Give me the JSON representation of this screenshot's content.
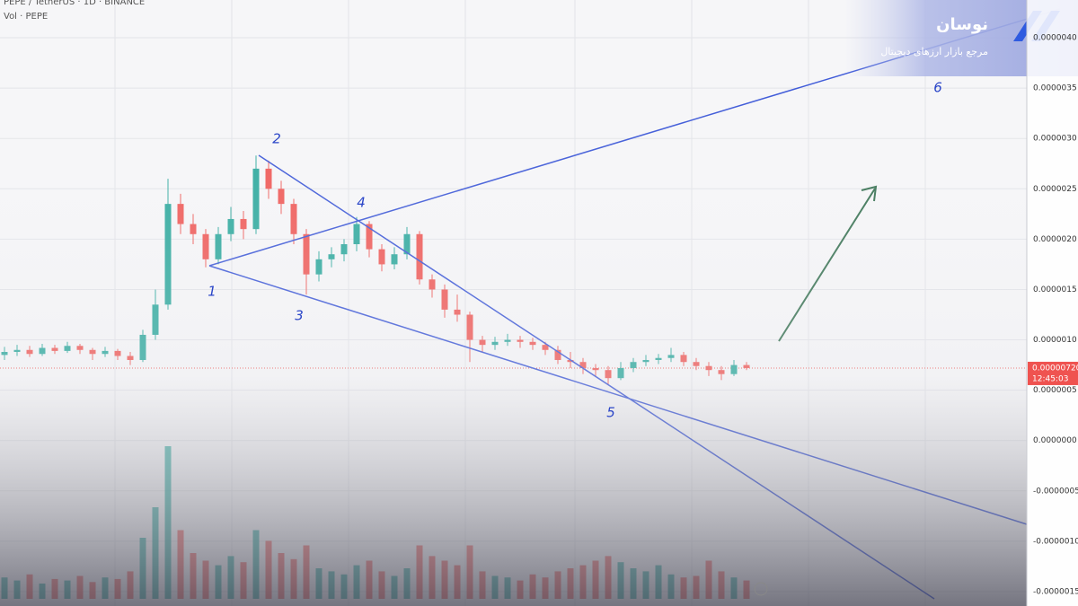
{
  "chart_data": {
    "type": "candlestick",
    "header": "PEPE / TetherUS · 1D · BINANCE",
    "volume_label": "Vol · PEPE",
    "open": [
      8.5e-07,
      8.8e-07,
      9e-07,
      8.6e-07,
      9.2e-07,
      8.9e-07,
      9.4e-07,
      9e-07,
      8.6e-07,
      8.9e-07,
      8.4e-07,
      8e-07,
      1.05e-06,
      1.35e-06,
      2.35e-06,
      2.15e-06,
      2.05e-06,
      1.8e-06,
      2.05e-06,
      2.2e-06,
      2.1e-06,
      2.7e-06,
      2.5e-06,
      2.35e-06,
      2.05e-06,
      1.65e-06,
      1.8e-06,
      1.85e-06,
      1.95e-06,
      2.15e-06,
      1.9e-06,
      1.75e-06,
      1.85e-06,
      2.05e-06,
      1.6e-06,
      1.5e-06,
      1.3e-06,
      1.25e-06,
      1e-06,
      9.5e-07,
      9.8e-07,
      1e-06,
      9.8e-07,
      9.5e-07,
      9e-07,
      8e-07,
      7.8e-07,
      7.2e-07,
      7e-07,
      6.2e-07,
      7.2e-07,
      7.8e-07,
      8e-07,
      8.2e-07,
      8.5e-07,
      7.8e-07,
      7.4e-07,
      7e-07,
      6.6e-07,
      7.5e-07
    ],
    "high": [
      9.3e-07,
      9.5e-07,
      9.4e-07,
      9.6e-07,
      9.5e-07,
      9.8e-07,
      9.6e-07,
      9.2e-07,
      9.3e-07,
      9.1e-07,
      8.8e-07,
      1.1e-06,
      1.5e-06,
      2.6e-06,
      2.45e-06,
      2.25e-06,
      2.1e-06,
      2.12e-06,
      2.32e-06,
      2.28e-06,
      2.83e-06,
      2.78e-06,
      2.58e-06,
      2.4e-06,
      2.1e-06,
      1.88e-06,
      1.92e-06,
      2e-06,
      2.22e-06,
      2.18e-06,
      1.95e-06,
      1.92e-06,
      2.12e-06,
      2.08e-06,
      1.65e-06,
      1.55e-06,
      1.45e-06,
      1.28e-06,
      1.04e-06,
      1.03e-06,
      1.06e-06,
      1.04e-06,
      1.02e-06,
      9.8e-07,
      9.4e-07,
      8.8e-07,
      8.2e-07,
      7.6e-07,
      7.4e-07,
      7.8e-07,
      8.2e-07,
      8.5e-07,
      8.6e-07,
      9.2e-07,
      8.8e-07,
      8.2e-07,
      7.8e-07,
      7.4e-07,
      8e-07,
      7.8e-07
    ],
    "low": [
      8e-07,
      8.4e-07,
      8.3e-07,
      8.4e-07,
      8.6e-07,
      8.7e-07,
      8.6e-07,
      8e-07,
      8.3e-07,
      8e-07,
      7.5e-07,
      7.8e-07,
      1e-06,
      1.3e-06,
      2.05e-06,
      1.95e-06,
      1.72e-06,
      1.75e-06,
      1.98e-06,
      2e-06,
      2.05e-06,
      2.4e-06,
      2.25e-06,
      1.95e-06,
      1.45e-06,
      1.58e-06,
      1.72e-06,
      1.78e-06,
      1.88e-06,
      1.82e-06,
      1.68e-06,
      1.7e-06,
      1.8e-06,
      1.55e-06,
      1.42e-06,
      1.22e-06,
      1.18e-06,
      7.8e-07,
      8.8e-07,
      9e-07,
      9.4e-07,
      9.2e-07,
      9e-07,
      8.5e-07,
      7.6e-07,
      7.2e-07,
      6.6e-07,
      6.4e-07,
      5.5e-07,
      6e-07,
      6.8e-07,
      7.4e-07,
      7.6e-07,
      7.8e-07,
      7.4e-07,
      7e-07,
      6.4e-07,
      6e-07,
      6.4e-07,
      7e-07
    ],
    "close": [
      8.8e-07,
      9e-07,
      8.6e-07,
      9.2e-07,
      8.9e-07,
      9.4e-07,
      9e-07,
      8.6e-07,
      8.9e-07,
      8.4e-07,
      8e-07,
      1.05e-06,
      1.35e-06,
      2.35e-06,
      2.15e-06,
      2.05e-06,
      1.8e-06,
      2.05e-06,
      2.2e-06,
      2.1e-06,
      2.7e-06,
      2.5e-06,
      2.35e-06,
      2.05e-06,
      1.65e-06,
      1.8e-06,
      1.85e-06,
      1.95e-06,
      2.15e-06,
      1.9e-06,
      1.75e-06,
      1.85e-06,
      2.05e-06,
      1.6e-06,
      1.5e-06,
      1.3e-06,
      1.25e-06,
      1e-06,
      9.5e-07,
      9.8e-07,
      1e-06,
      9.8e-07,
      9.5e-07,
      9e-07,
      8e-07,
      7.8e-07,
      7.2e-07,
      7e-07,
      6.2e-07,
      7.2e-07,
      7.8e-07,
      8e-07,
      8.2e-07,
      8.5e-07,
      7.8e-07,
      7.4e-07,
      7e-07,
      6.6e-07,
      7.5e-07,
      7.2e-07
    ],
    "volume": [
      14,
      12,
      16,
      10,
      13,
      12,
      15,
      11,
      14,
      13,
      18,
      40,
      60,
      100,
      45,
      30,
      25,
      22,
      28,
      24,
      45,
      38,
      30,
      26,
      35,
      20,
      18,
      16,
      22,
      25,
      18,
      15,
      20,
      35,
      28,
      25,
      22,
      35,
      18,
      15,
      14,
      12,
      16,
      14,
      18,
      20,
      22,
      25,
      28,
      24,
      20,
      18,
      22,
      16,
      14,
      15,
      25,
      18,
      14,
      12
    ],
    "up_color": "#26a69a",
    "down_color": "#ef5350",
    "ylim": [
      -1.643e-06,
      4.375e-06
    ],
    "yticks": [
      {
        "value": 4e-06,
        "label": "0.0000040"
      },
      {
        "value": 3.5e-06,
        "label": "0.0000035"
      },
      {
        "value": 3e-06,
        "label": "0.0000030"
      },
      {
        "value": 2.5e-06,
        "label": "0.0000025"
      },
      {
        "value": 2e-06,
        "label": "0.0000020"
      },
      {
        "value": 1.5e-06,
        "label": "0.0000015"
      },
      {
        "value": 1e-06,
        "label": "0.0000010"
      },
      {
        "value": 5e-07,
        "label": "0.0000005"
      },
      {
        "value": 0,
        "label": "0.0000000"
      },
      {
        "value": -5e-07,
        "label": "-0.0000005"
      },
      {
        "value": -1e-06,
        "label": "-0.0000010"
      },
      {
        "value": -1.5e-06,
        "label": "-0.0000015"
      }
    ],
    "last_price": {
      "value": 7.2e-07,
      "label": "0.00000720"
    },
    "countdown": "12:45:03",
    "grid": true,
    "annotations": [
      "1",
      "2",
      "3",
      "4",
      "5",
      "6"
    ],
    "brand": {
      "name": "نوسان",
      "tagline": "مرجع بازار ارزهای دیجیتال"
    }
  }
}
